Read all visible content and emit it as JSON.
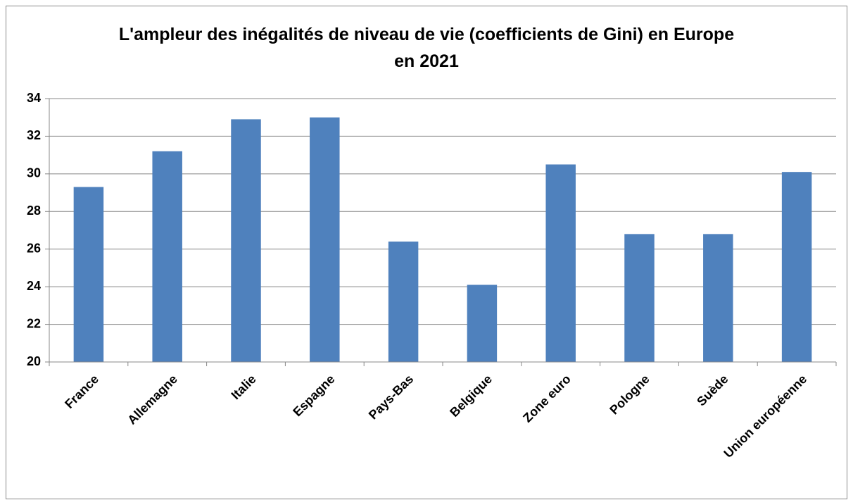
{
  "chart_data": {
    "type": "bar",
    "title": "L'ampleur des inégalités de niveau de vie (coefficients de Gini) en Europe en 2021",
    "categories": [
      "France",
      "Allemagne",
      "Italie",
      "Espagne",
      "Pays-Bas",
      "Belgique",
      "Zone euro",
      "Pologne",
      "Suède",
      "Union européenne"
    ],
    "values": [
      29.3,
      31.2,
      32.9,
      33.0,
      26.4,
      24.1,
      30.5,
      26.8,
      26.8,
      30.1
    ],
    "color": "#4f81bd",
    "ylim": [
      20,
      34
    ],
    "yticks": [
      20,
      22,
      24,
      26,
      28,
      30,
      32,
      34
    ],
    "grid": true
  }
}
